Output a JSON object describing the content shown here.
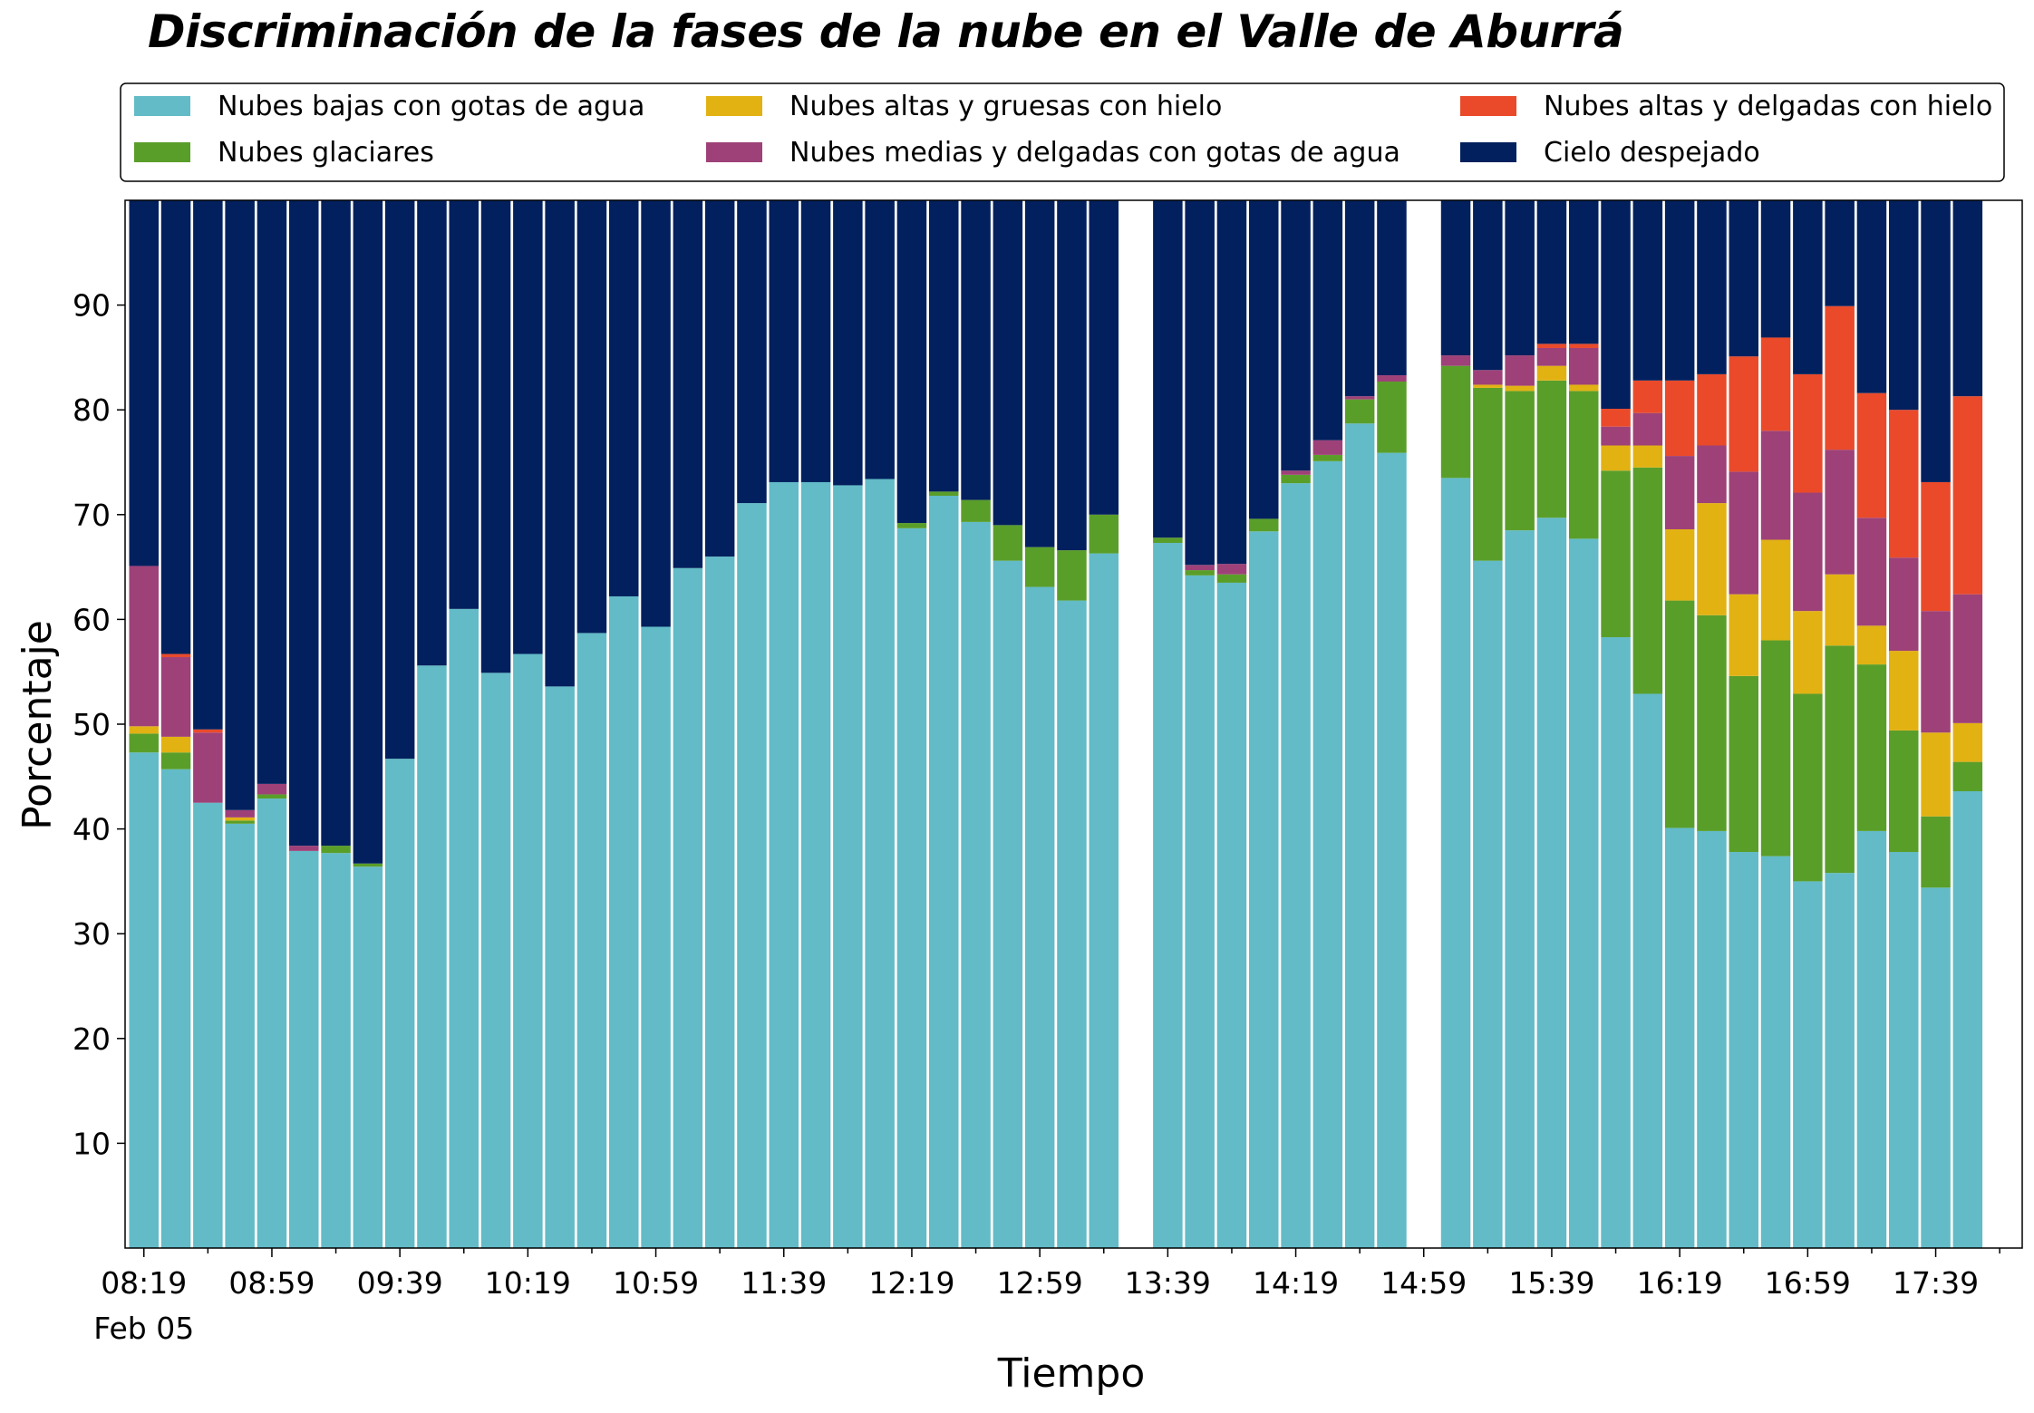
{
  "chart_data": {
    "type": "bar",
    "stacked": true,
    "title": "Discriminación de la fases de la nube en el Valle de Aburrá",
    "xlabel": "Tiempo",
    "ylabel": "Porcentaje",
    "ylim": [
      0,
      100
    ],
    "yticks": [
      10,
      20,
      30,
      40,
      50,
      60,
      70,
      80,
      90
    ],
    "x_tick_labels": [
      "08:19",
      "08:59",
      "09:39",
      "10:19",
      "10:59",
      "11:39",
      "12:19",
      "12:59",
      "13:39",
      "14:19",
      "14:59",
      "15:39",
      "16:19",
      "16:59",
      "17:39"
    ],
    "x_date_label": "Feb 05",
    "x_start": "08:19",
    "x_step_minutes": 10,
    "grid": false,
    "legend_position": "top",
    "series": [
      {
        "name": "Nubes bajas con gotas de agua",
        "color": "#62BBC7",
        "values": [
          47.3,
          45.7,
          42.5,
          40.5,
          42.9,
          37.9,
          37.7,
          36.4,
          46.7,
          55.6,
          61.0,
          54.9,
          56.7,
          53.6,
          58.7,
          62.2,
          59.3,
          64.9,
          66.0,
          71.1,
          73.1,
          73.1,
          72.8,
          73.4,
          68.7,
          71.8,
          69.3,
          65.6,
          63.1,
          61.8,
          66.3,
          null,
          67.3,
          64.2,
          63.5,
          68.4,
          73.0,
          75.1,
          78.7,
          75.9,
          null,
          73.5,
          65.6,
          68.5,
          69.7,
          67.7,
          58.3,
          52.9,
          40.1,
          39.8,
          37.8,
          37.4,
          35.0,
          35.8,
          39.8,
          37.8,
          34.4,
          43.6
        ]
      },
      {
        "name": "Nubes glaciares",
        "color": "#5A9E2A",
        "values": [
          1.8,
          1.6,
          0,
          0.3,
          0.4,
          0,
          0.7,
          0.3,
          0,
          0,
          0,
          0,
          0,
          0,
          0,
          0,
          0,
          0,
          0,
          0,
          0,
          0,
          0,
          0,
          0.5,
          0.4,
          2.1,
          3.4,
          3.8,
          4.8,
          3.7,
          null,
          0.5,
          0.5,
          0.8,
          1.2,
          0.8,
          0.6,
          2.3,
          6.8,
          null,
          10.7,
          16.5,
          13.3,
          13.1,
          14.1,
          15.9,
          21.6,
          21.7,
          20.6,
          16.8,
          20.6,
          17.9,
          21.7,
          15.9,
          11.6,
          6.8,
          2.8
        ]
      },
      {
        "name": "Nubes altas y gruesas con hielo",
        "color": "#E2B213",
        "values": [
          0.7,
          1.5,
          0,
          0.3,
          0,
          0,
          0,
          0,
          0,
          0,
          0,
          0,
          0,
          0,
          0,
          0,
          0,
          0,
          0,
          0,
          0,
          0,
          0,
          0,
          0,
          0,
          0,
          0,
          0,
          0,
          0,
          null,
          0,
          0,
          0,
          0,
          0,
          0,
          0,
          0,
          null,
          0,
          0.3,
          0.5,
          1.4,
          0.6,
          2.4,
          2.1,
          6.8,
          10.7,
          7.8,
          9.6,
          7.9,
          6.8,
          3.7,
          7.6,
          8.0,
          3.7
        ]
      },
      {
        "name": "Nubes medias y delgadas con gotas de agua",
        "color": "#9E4178",
        "values": [
          15.3,
          7.6,
          6.7,
          0.7,
          1.0,
          0.5,
          0,
          0,
          0,
          0,
          0,
          0,
          0,
          0,
          0,
          0,
          0,
          0,
          0,
          0,
          0,
          0,
          0,
          0,
          0,
          0,
          0,
          0,
          0,
          0,
          0,
          null,
          0,
          0.5,
          1.0,
          0,
          0.4,
          1.4,
          0.3,
          0.6,
          null,
          1.0,
          1.4,
          2.9,
          1.7,
          3.5,
          1.8,
          3.1,
          7.0,
          5.5,
          11.7,
          10.4,
          11.3,
          11.9,
          10.3,
          8.9,
          11.6,
          12.3
        ]
      },
      {
        "name": "Nubes altas y delgadas con hielo",
        "color": "#EA4A2A",
        "values": [
          0,
          0.3,
          0.3,
          0,
          0,
          0,
          0,
          0,
          0,
          0,
          0,
          0,
          0,
          0,
          0,
          0,
          0,
          0,
          0,
          0,
          0,
          0,
          0,
          0,
          0,
          0,
          0,
          0,
          0,
          0,
          0,
          null,
          0,
          0,
          0,
          0,
          0,
          0,
          0,
          0,
          null,
          0,
          0,
          0,
          0.4,
          0.4,
          1.7,
          3.1,
          7.2,
          6.8,
          11.0,
          8.9,
          11.3,
          13.7,
          11.9,
          14.1,
          12.3,
          18.9
        ]
      }
    ],
    "remainder_series": {
      "name": "Cielo despejado",
      "color": "#02205D"
    },
    "missing_slots": [
      31,
      40
    ]
  }
}
